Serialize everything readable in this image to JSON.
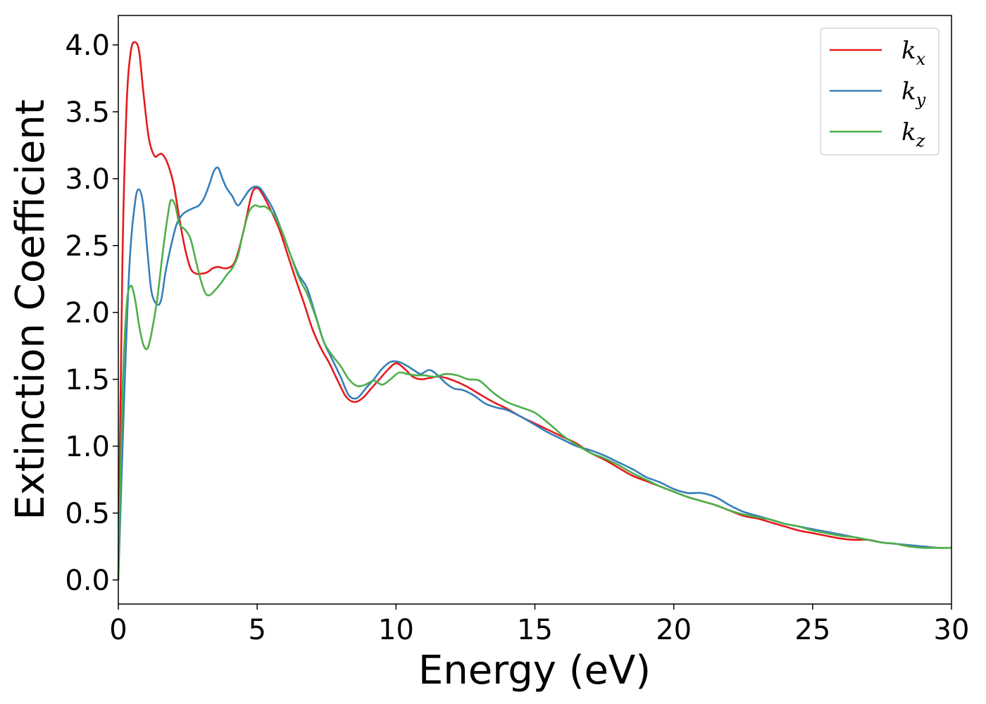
{
  "chart_data": {
    "type": "line",
    "xlabel": "Energy (eV)",
    "ylabel": "Extinction Coefficient",
    "xlim": [
      0,
      30
    ],
    "ylim": [
      -0.18,
      4.22
    ],
    "xticks": [
      0,
      5,
      10,
      15,
      20,
      25,
      30
    ],
    "yticks": [
      0.0,
      0.5,
      1.0,
      1.5,
      2.0,
      2.5,
      3.0,
      3.5,
      4.0
    ],
    "xtick_labels": [
      "0",
      "5",
      "10",
      "15",
      "20",
      "25",
      "30"
    ],
    "ytick_labels": [
      "0.0",
      "0.5",
      "1.0",
      "1.5",
      "2.0",
      "2.5",
      "3.0",
      "3.5",
      "4.0"
    ],
    "grid": false,
    "legend_position": "top-right",
    "series": [
      {
        "name": "k",
        "sub": "x",
        "color": "#e41a1c",
        "x": [
          0,
          0.15,
          0.3,
          0.45,
          0.6,
          0.75,
          0.9,
          1.1,
          1.3,
          1.45,
          1.6,
          1.8,
          2.0,
          2.2,
          2.4,
          2.6,
          2.8,
          3.0,
          3.2,
          3.4,
          3.6,
          3.9,
          4.2,
          4.5,
          4.8,
          5.0,
          5.2,
          5.5,
          5.8,
          6.1,
          6.4,
          6.7,
          7.0,
          7.3,
          7.6,
          7.9,
          8.2,
          8.5,
          8.8,
          9.1,
          9.4,
          9.7,
          10.0,
          10.3,
          10.6,
          10.9,
          11.2,
          11.5,
          11.8,
          12.2,
          12.6,
          13.0,
          13.5,
          14.0,
          14.5,
          15.0,
          15.5,
          16.0,
          16.5,
          17.0,
          17.5,
          18.0,
          18.5,
          19.0,
          19.5,
          20.0,
          20.5,
          21.0,
          21.5,
          22.0,
          22.5,
          23.0,
          23.5,
          24.0,
          24.5,
          25.0,
          25.5,
          26.0,
          26.5,
          27.0,
          27.5,
          28.0,
          28.5,
          29.0,
          29.5,
          30.0
        ],
        "y": [
          0.0,
          2.4,
          3.55,
          3.95,
          4.02,
          3.95,
          3.65,
          3.3,
          3.17,
          3.18,
          3.18,
          3.1,
          2.95,
          2.7,
          2.48,
          2.33,
          2.29,
          2.29,
          2.3,
          2.33,
          2.34,
          2.33,
          2.38,
          2.6,
          2.88,
          2.93,
          2.88,
          2.76,
          2.62,
          2.43,
          2.24,
          2.06,
          1.87,
          1.73,
          1.62,
          1.49,
          1.37,
          1.33,
          1.36,
          1.43,
          1.5,
          1.57,
          1.62,
          1.58,
          1.52,
          1.5,
          1.51,
          1.52,
          1.51,
          1.48,
          1.44,
          1.39,
          1.33,
          1.28,
          1.22,
          1.17,
          1.12,
          1.07,
          1.02,
          0.95,
          0.9,
          0.84,
          0.78,
          0.74,
          0.7,
          0.66,
          0.62,
          0.59,
          0.56,
          0.52,
          0.48,
          0.46,
          0.43,
          0.4,
          0.37,
          0.35,
          0.33,
          0.31,
          0.3,
          0.3,
          0.28,
          0.27,
          0.25,
          0.25,
          0.24,
          0.24
        ]
      },
      {
        "name": "k",
        "sub": "y",
        "color": "#377eb8",
        "x": [
          0,
          0.2,
          0.4,
          0.6,
          0.75,
          0.9,
          1.05,
          1.2,
          1.4,
          1.55,
          1.7,
          1.9,
          2.1,
          2.3,
          2.5,
          2.7,
          2.9,
          3.1,
          3.3,
          3.45,
          3.6,
          3.75,
          3.9,
          4.1,
          4.3,
          4.5,
          4.7,
          4.9,
          5.1,
          5.3,
          5.6,
          5.9,
          6.2,
          6.5,
          6.8,
          7.1,
          7.4,
          7.7,
          8.0,
          8.3,
          8.6,
          8.9,
          9.2,
          9.5,
          9.8,
          10.1,
          10.4,
          10.7,
          10.9,
          11.2,
          11.5,
          11.8,
          12.1,
          12.4,
          12.8,
          13.2,
          13.6,
          14.0,
          14.5,
          15.0,
          15.5,
          16.0,
          16.5,
          17.0,
          17.5,
          18.0,
          18.5,
          19.0,
          19.5,
          20.0,
          20.5,
          21.0,
          21.5,
          22.0,
          22.5,
          23.0,
          23.5,
          24.0,
          24.5,
          25.0,
          25.5,
          26.0,
          26.5,
          27.0,
          27.5,
          28.0,
          28.5,
          29.0,
          29.5,
          30.0
        ],
        "y": [
          0.0,
          1.3,
          2.35,
          2.82,
          2.92,
          2.8,
          2.45,
          2.15,
          2.06,
          2.1,
          2.3,
          2.5,
          2.66,
          2.73,
          2.76,
          2.78,
          2.8,
          2.86,
          2.97,
          3.06,
          3.08,
          3.0,
          2.93,
          2.87,
          2.8,
          2.85,
          2.91,
          2.94,
          2.93,
          2.87,
          2.76,
          2.6,
          2.43,
          2.28,
          2.18,
          1.98,
          1.78,
          1.65,
          1.52,
          1.38,
          1.36,
          1.43,
          1.5,
          1.58,
          1.63,
          1.63,
          1.6,
          1.56,
          1.54,
          1.57,
          1.53,
          1.47,
          1.43,
          1.42,
          1.38,
          1.32,
          1.29,
          1.27,
          1.22,
          1.16,
          1.1,
          1.05,
          1.0,
          0.97,
          0.93,
          0.88,
          0.83,
          0.77,
          0.73,
          0.68,
          0.65,
          0.65,
          0.62,
          0.56,
          0.51,
          0.48,
          0.45,
          0.42,
          0.4,
          0.38,
          0.36,
          0.34,
          0.32,
          0.3,
          0.28,
          0.27,
          0.26,
          0.25,
          0.24,
          0.24
        ]
      },
      {
        "name": "k",
        "sub": "z",
        "color": "#4daf4a",
        "x": [
          0,
          0.15,
          0.3,
          0.45,
          0.6,
          0.75,
          0.9,
          1.05,
          1.2,
          1.4,
          1.6,
          1.8,
          1.9,
          2.05,
          2.2,
          2.4,
          2.6,
          2.8,
          3.0,
          3.15,
          3.3,
          3.5,
          3.7,
          3.9,
          4.1,
          4.3,
          4.5,
          4.7,
          4.9,
          5.1,
          5.3,
          5.6,
          5.9,
          6.2,
          6.5,
          6.8,
          7.1,
          7.4,
          7.7,
          8.0,
          8.3,
          8.6,
          8.9,
          9.2,
          9.5,
          9.8,
          10.1,
          10.4,
          10.7,
          11.0,
          11.4,
          11.8,
          12.2,
          12.6,
          13.0,
          13.5,
          14.0,
          14.5,
          15.0,
          15.5,
          16.0,
          16.5,
          17.0,
          17.5,
          18.0,
          18.5,
          19.0,
          19.5,
          20.0,
          20.5,
          21.0,
          21.5,
          22.0,
          22.5,
          23.0,
          23.5,
          24.0,
          24.5,
          25.0,
          25.5,
          26.0,
          26.5,
          27.0,
          27.5,
          28.0,
          28.5,
          29.0,
          29.5,
          30.0
        ],
        "y": [
          0.0,
          1.4,
          2.05,
          2.2,
          2.1,
          1.9,
          1.76,
          1.73,
          1.85,
          2.1,
          2.45,
          2.75,
          2.84,
          2.8,
          2.66,
          2.62,
          2.55,
          2.38,
          2.22,
          2.14,
          2.13,
          2.17,
          2.22,
          2.28,
          2.33,
          2.42,
          2.6,
          2.75,
          2.8,
          2.79,
          2.79,
          2.73,
          2.6,
          2.43,
          2.26,
          2.14,
          1.97,
          1.78,
          1.68,
          1.6,
          1.5,
          1.45,
          1.46,
          1.49,
          1.46,
          1.5,
          1.55,
          1.54,
          1.53,
          1.53,
          1.52,
          1.54,
          1.53,
          1.5,
          1.49,
          1.4,
          1.33,
          1.29,
          1.25,
          1.17,
          1.08,
          1.01,
          0.95,
          0.91,
          0.86,
          0.8,
          0.75,
          0.7,
          0.66,
          0.62,
          0.59,
          0.56,
          0.52,
          0.49,
          0.47,
          0.45,
          0.42,
          0.4,
          0.37,
          0.35,
          0.33,
          0.32,
          0.3,
          0.28,
          0.27,
          0.25,
          0.24,
          0.24,
          0.24
        ]
      }
    ]
  }
}
